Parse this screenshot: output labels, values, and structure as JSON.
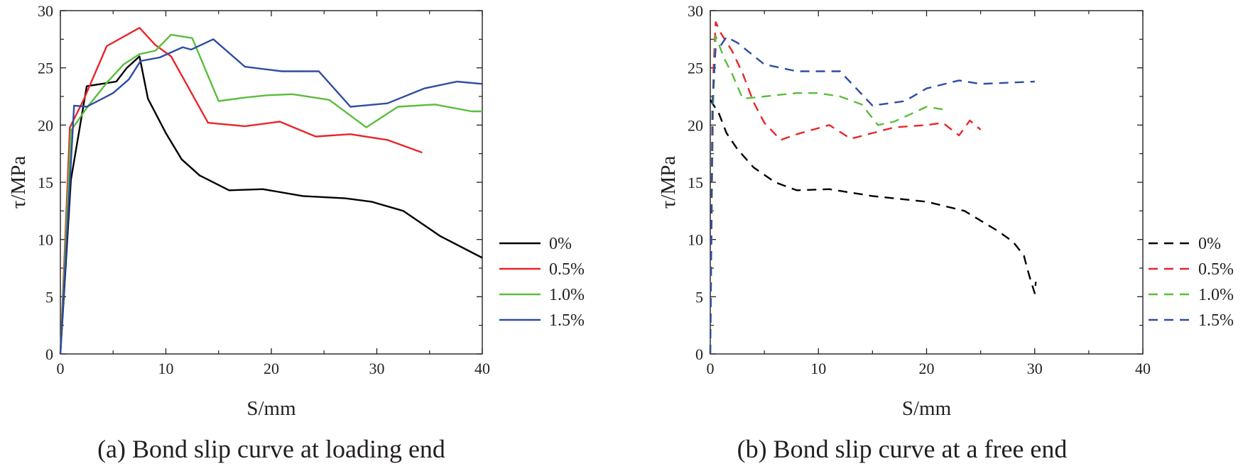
{
  "chart_data": [
    {
      "type": "line",
      "caption": "(a) Bond slip curve at loading end",
      "xlabel": "S/mm",
      "ylabel": "τ/MPa",
      "xlim": [
        0,
        40
      ],
      "ylim": [
        0,
        30
      ],
      "xticks": [
        0,
        10,
        20,
        30,
        40
      ],
      "yticks": [
        0,
        5,
        10,
        15,
        20,
        25,
        30
      ],
      "legend_position": "right",
      "line_style": "solid",
      "series": [
        {
          "name": "0%",
          "color": "#000000",
          "points": [
            [
              0,
              0
            ],
            [
              1,
              15.2
            ],
            [
              2.5,
              23.4
            ],
            [
              5.3,
              23.8
            ],
            [
              6.3,
              25
            ],
            [
              7.5,
              26
            ],
            [
              8.3,
              22.3
            ],
            [
              10,
              19.3
            ],
            [
              11.5,
              17
            ],
            [
              13.2,
              15.6
            ],
            [
              16,
              14.3
            ],
            [
              19.2,
              14.4
            ],
            [
              23,
              13.8
            ],
            [
              27,
              13.6
            ],
            [
              29.5,
              13.3
            ],
            [
              32.5,
              12.5
            ],
            [
              36,
              10.3
            ],
            [
              40,
              8.4
            ]
          ]
        },
        {
          "name": "0.5%",
          "color": "#e8262b",
          "points": [
            [
              0,
              0
            ],
            [
              0.9,
              19.8
            ],
            [
              2.2,
              22.2
            ],
            [
              4.4,
              26.9
            ],
            [
              7.5,
              28.5
            ],
            [
              9,
              27
            ],
            [
              10.5,
              26
            ],
            [
              14,
              20.2
            ],
            [
              17.5,
              19.9
            ],
            [
              20.8,
              20.3
            ],
            [
              24.2,
              19
            ],
            [
              27.5,
              19.2
            ],
            [
              31,
              18.7
            ],
            [
              34.3,
              17.6
            ]
          ]
        },
        {
          "name": "1.0%",
          "color": "#5bbd3e",
          "points": [
            [
              0,
              0
            ],
            [
              1,
              19.5
            ],
            [
              2.5,
              21.5
            ],
            [
              4.5,
              23.8
            ],
            [
              6,
              25.3
            ],
            [
              7.5,
              26.2
            ],
            [
              9,
              26.5
            ],
            [
              10.5,
              27.9
            ],
            [
              12.5,
              27.6
            ],
            [
              15,
              22.1
            ],
            [
              17.5,
              22.4
            ],
            [
              19.5,
              22.6
            ],
            [
              22,
              22.7
            ],
            [
              25.5,
              22.2
            ],
            [
              29,
              19.8
            ],
            [
              32,
              21.6
            ],
            [
              35.5,
              21.8
            ],
            [
              39,
              21.2
            ],
            [
              40,
              21.2
            ]
          ]
        },
        {
          "name": "1.5%",
          "color": "#2e4ca1",
          "points": [
            [
              0,
              0
            ],
            [
              1.3,
              21.7
            ],
            [
              2.5,
              21.6
            ],
            [
              5,
              22.8
            ],
            [
              6.5,
              24
            ],
            [
              7.6,
              25.6
            ],
            [
              9.4,
              25.9
            ],
            [
              11.6,
              26.8
            ],
            [
              12.4,
              26.6
            ],
            [
              14.5,
              27.5
            ],
            [
              17.5,
              25.1
            ],
            [
              21,
              24.7
            ],
            [
              24.5,
              24.7
            ],
            [
              27.5,
              21.6
            ],
            [
              31,
              21.9
            ],
            [
              34.5,
              23.2
            ],
            [
              37.6,
              23.8
            ],
            [
              40,
              23.6
            ]
          ]
        }
      ]
    },
    {
      "type": "line",
      "caption": "(b) Bond slip curve at a free end",
      "xlabel": "S/mm",
      "ylabel": "τ/MPa",
      "xlim": [
        0,
        40
      ],
      "ylim": [
        0,
        30
      ],
      "xticks": [
        0,
        10,
        20,
        30,
        40
      ],
      "yticks": [
        0,
        5,
        10,
        15,
        20,
        25,
        30
      ],
      "legend_position": "right",
      "line_style": "dashed",
      "series": [
        {
          "name": "0%",
          "color": "#000000",
          "points": [
            [
              0,
              22.2
            ],
            [
              0.8,
              21
            ],
            [
              1.5,
              19.3
            ],
            [
              2.5,
              17.9
            ],
            [
              4,
              16.3
            ],
            [
              6,
              15
            ],
            [
              8,
              14.3
            ],
            [
              11,
              14.4
            ],
            [
              15,
              13.8
            ],
            [
              20,
              13.3
            ],
            [
              23.5,
              12.5
            ],
            [
              26.5,
              10.8
            ],
            [
              28,
              9.8
            ],
            [
              29,
              8.6
            ],
            [
              29.3,
              7.5
            ],
            [
              29.6,
              6.5
            ],
            [
              30,
              5.3
            ],
            [
              30.1,
              6.3
            ]
          ]
        },
        {
          "name": "0.5%",
          "color": "#e8262b",
          "points": [
            [
              0,
              0
            ],
            [
              0.15,
              14
            ],
            [
              0.3,
              25
            ],
            [
              0.5,
              29
            ],
            [
              1,
              28
            ],
            [
              2,
              26.5
            ],
            [
              3,
              24.5
            ],
            [
              4,
              22
            ],
            [
              5,
              20.2
            ],
            [
              6.5,
              18.7
            ],
            [
              8,
              19.2
            ],
            [
              11,
              20
            ],
            [
              13,
              18.8
            ],
            [
              15,
              19.3
            ],
            [
              17,
              19.8
            ],
            [
              20,
              20
            ],
            [
              21.5,
              20.2
            ],
            [
              23,
              19.1
            ],
            [
              24,
              20.4
            ],
            [
              25,
              19.6
            ]
          ]
        },
        {
          "name": "1.0%",
          "color": "#5bbd3e",
          "points": [
            [
              0,
              0
            ],
            [
              0.2,
              20
            ],
            [
              0.5,
              27.8
            ],
            [
              1.3,
              25.8
            ],
            [
              2,
              24.5
            ],
            [
              3,
              22.3
            ],
            [
              5,
              22.5
            ],
            [
              8,
              22.8
            ],
            [
              10,
              22.8
            ],
            [
              12,
              22.5
            ],
            [
              14,
              21.8
            ],
            [
              15.5,
              20
            ],
            [
              17,
              20.3
            ],
            [
              20,
              21.6
            ],
            [
              22,
              21.3
            ]
          ]
        },
        {
          "name": "1.5%",
          "color": "#2e4ca1",
          "points": [
            [
              0,
              0
            ],
            [
              0.2,
              22
            ],
            [
              0.5,
              26.8
            ],
            [
              1,
              27
            ],
            [
              1.5,
              27.7
            ],
            [
              2.5,
              27.2
            ],
            [
              5,
              25.3
            ],
            [
              8,
              24.7
            ],
            [
              12,
              24.7
            ],
            [
              15,
              21.7
            ],
            [
              18,
              22.1
            ],
            [
              20,
              23.2
            ],
            [
              23,
              23.9
            ],
            [
              25,
              23.6
            ],
            [
              30,
              23.8
            ]
          ]
        }
      ]
    }
  ]
}
